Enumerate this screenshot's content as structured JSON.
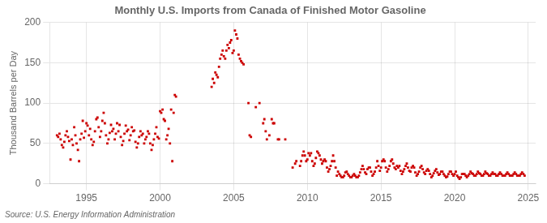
{
  "chart_data": {
    "type": "scatter",
    "title": "Monthly U.S. Imports from Canada of Finished Motor Gasoline",
    "y_label": "Thousand Barrels per Day",
    "annotation": "Source: U.S. Energy Information Administration",
    "color": "#CC0000",
    "marker": "square",
    "grid": true,
    "xlim": [
      1992.5,
      2025.5
    ],
    "xticks": [
      1995,
      2000,
      2005,
      2010,
      2015,
      2020,
      2025
    ],
    "ylim": [
      0,
      200
    ],
    "yticks": [
      0,
      50,
      100,
      150,
      200
    ],
    "x": [
      1993.0,
      1993.08,
      1993.17,
      1993.25,
      1993.33,
      1993.42,
      1993.5,
      1993.58,
      1993.67,
      1993.75,
      1993.83,
      1993.92,
      1994.0,
      1994.08,
      1994.17,
      1994.25,
      1994.33,
      1994.42,
      1994.5,
      1994.58,
      1994.67,
      1994.75,
      1994.83,
      1994.92,
      1995.0,
      1995.08,
      1995.17,
      1995.25,
      1995.33,
      1995.42,
      1995.5,
      1995.58,
      1995.67,
      1995.75,
      1995.83,
      1995.92,
      1996.0,
      1996.08,
      1996.17,
      1996.25,
      1996.33,
      1996.42,
      1996.5,
      1996.58,
      1996.67,
      1996.75,
      1996.83,
      1996.92,
      1997.0,
      1997.08,
      1997.17,
      1997.25,
      1997.33,
      1997.42,
      1997.5,
      1997.58,
      1997.67,
      1997.75,
      1997.83,
      1997.92,
      1998.0,
      1998.08,
      1998.17,
      1998.25,
      1998.33,
      1998.42,
      1998.5,
      1998.58,
      1998.67,
      1998.75,
      1998.83,
      1998.92,
      1999.0,
      1999.08,
      1999.17,
      1999.25,
      1999.33,
      1999.42,
      1999.5,
      1999.58,
      1999.67,
      1999.75,
      1999.83,
      1999.92,
      2000.0,
      2000.08,
      2000.17,
      2000.25,
      2000.33,
      2000.42,
      2000.5,
      2000.58,
      2000.67,
      2000.75,
      2000.83,
      2000.92,
      2001.0,
      2001.08,
      2003.5,
      2003.58,
      2003.67,
      2003.75,
      2003.83,
      2003.92,
      2004.0,
      2004.08,
      2004.17,
      2004.25,
      2004.33,
      2004.42,
      2004.5,
      2004.58,
      2004.67,
      2004.75,
      2004.83,
      2004.92,
      2005.0,
      2005.08,
      2005.17,
      2005.25,
      2005.33,
      2005.42,
      2005.5,
      2005.58,
      2005.67,
      2006.0,
      2006.08,
      2006.17,
      2006.5,
      2006.75,
      2007.0,
      2007.08,
      2007.17,
      2007.25,
      2007.42,
      2007.58,
      2007.67,
      2007.75,
      2008.0,
      2008.08,
      2008.5,
      2009.0,
      2009.17,
      2009.25,
      2009.5,
      2009.58,
      2009.67,
      2009.75,
      2009.83,
      2009.92,
      2010.0,
      2010.08,
      2010.17,
      2010.25,
      2010.33,
      2010.42,
      2010.5,
      2010.58,
      2010.67,
      2010.75,
      2010.83,
      2010.92,
      2011.0,
      2011.08,
      2011.17,
      2011.25,
      2011.33,
      2011.42,
      2011.5,
      2011.58,
      2011.67,
      2011.75,
      2011.83,
      2011.92,
      2012.0,
      2012.08,
      2012.17,
      2012.25,
      2012.33,
      2012.42,
      2012.5,
      2012.58,
      2012.67,
      2012.75,
      2012.83,
      2012.92,
      2013.0,
      2013.08,
      2013.17,
      2013.25,
      2013.33,
      2013.42,
      2013.5,
      2013.58,
      2013.67,
      2013.75,
      2013.83,
      2013.92,
      2014.0,
      2014.08,
      2014.17,
      2014.25,
      2014.33,
      2014.42,
      2014.5,
      2014.58,
      2014.67,
      2014.75,
      2014.83,
      2014.92,
      2015.0,
      2015.08,
      2015.17,
      2015.25,
      2015.33,
      2015.42,
      2015.5,
      2015.58,
      2015.67,
      2015.75,
      2015.83,
      2015.92,
      2016.0,
      2016.08,
      2016.17,
      2016.25,
      2016.33,
      2016.42,
      2016.5,
      2016.58,
      2016.67,
      2016.75,
      2016.83,
      2016.92,
      2017.0,
      2017.08,
      2017.17,
      2017.25,
      2017.33,
      2017.42,
      2017.5,
      2017.58,
      2017.67,
      2017.75,
      2017.83,
      2017.92,
      2018.0,
      2018.08,
      2018.17,
      2018.25,
      2018.33,
      2018.42,
      2018.5,
      2018.58,
      2018.67,
      2018.75,
      2018.83,
      2018.92,
      2019.0,
      2019.08,
      2019.17,
      2019.25,
      2019.33,
      2019.42,
      2019.5,
      2019.58,
      2019.67,
      2019.75,
      2019.83,
      2019.92,
      2020.0,
      2020.08,
      2020.17,
      2020.25,
      2020.33,
      2020.42,
      2020.5,
      2020.58,
      2020.67,
      2020.75,
      2020.83,
      2020.92,
      2021.0,
      2021.08,
      2021.17,
      2021.25,
      2021.33,
      2021.42,
      2021.5,
      2021.58,
      2021.67,
      2021.75,
      2021.83,
      2021.92,
      2022.0,
      2022.08,
      2022.17,
      2022.25,
      2022.33,
      2022.42,
      2022.5,
      2022.58,
      2022.67,
      2022.75,
      2022.83,
      2022.92,
      2023.0,
      2023.08,
      2023.17,
      2023.25,
      2023.33,
      2023.42,
      2023.5,
      2023.58,
      2023.67,
      2023.75,
      2023.83,
      2023.92,
      2024.0,
      2024.08,
      2024.17,
      2024.25,
      2024.33,
      2024.42,
      2024.5,
      2024.58,
      2024.67,
      2024.75
    ],
    "values": [
      60,
      58,
      62,
      55,
      48,
      45,
      52,
      60,
      65,
      58,
      53,
      30,
      55,
      48,
      70,
      60,
      50,
      42,
      28,
      55,
      62,
      78,
      57,
      65,
      75,
      72,
      60,
      68,
      55,
      48,
      52,
      65,
      80,
      82,
      70,
      58,
      65,
      78,
      88,
      75,
      60,
      50,
      55,
      63,
      73,
      65,
      68,
      55,
      62,
      75,
      65,
      73,
      58,
      48,
      53,
      62,
      72,
      65,
      67,
      54,
      60,
      70,
      65,
      66,
      52,
      45,
      50,
      58,
      65,
      60,
      62,
      50,
      55,
      58,
      65,
      62,
      50,
      42,
      48,
      55,
      62,
      70,
      58,
      56,
      90,
      88,
      92,
      80,
      78,
      55,
      60,
      68,
      50,
      92,
      28,
      88,
      110,
      108,
      120,
      130,
      125,
      138,
      135,
      132,
      145,
      155,
      160,
      165,
      158,
      155,
      165,
      172,
      168,
      175,
      178,
      162,
      165,
      190,
      185,
      180,
      160,
      155,
      152,
      150,
      148,
      100,
      60,
      58,
      95,
      100,
      75,
      80,
      65,
      55,
      60,
      80,
      75,
      75,
      55,
      55,
      55,
      20,
      25,
      28,
      22,
      28,
      35,
      40,
      35,
      28,
      30,
      38,
      35,
      38,
      28,
      22,
      25,
      32,
      40,
      38,
      35,
      30,
      25,
      28,
      30,
      28,
      20,
      15,
      18,
      22,
      28,
      35,
      28,
      20,
      10,
      15,
      12,
      10,
      8,
      8,
      10,
      14,
      15,
      12,
      10,
      8,
      8,
      10,
      12,
      10,
      8,
      8,
      10,
      14,
      18,
      22,
      18,
      14,
      12,
      18,
      20,
      20,
      15,
      10,
      12,
      15,
      20,
      28,
      22,
      16,
      20,
      28,
      30,
      28,
      20,
      15,
      18,
      22,
      28,
      30,
      25,
      20,
      18,
      22,
      20,
      22,
      16,
      12,
      15,
      18,
      22,
      25,
      20,
      16,
      15,
      20,
      22,
      20,
      14,
      10,
      12,
      15,
      20,
      22,
      18,
      14,
      12,
      16,
      18,
      16,
      12,
      8,
      10,
      13,
      16,
      18,
      14,
      11,
      12,
      15,
      15,
      12,
      10,
      8,
      9,
      12,
      15,
      15,
      12,
      10,
      12,
      15,
      10,
      8,
      6,
      8,
      12,
      12,
      12,
      10,
      8,
      10,
      12,
      15,
      13,
      12,
      10,
      10,
      12,
      15,
      13,
      12,
      10,
      10,
      12,
      15,
      13,
      12,
      10,
      10,
      12,
      14,
      12,
      12,
      10,
      10,
      12,
      14,
      12,
      10,
      10,
      10,
      12,
      14,
      12,
      10,
      10,
      10,
      12,
      14,
      12,
      10,
      10,
      10,
      12,
      14,
      12,
      10
    ]
  }
}
